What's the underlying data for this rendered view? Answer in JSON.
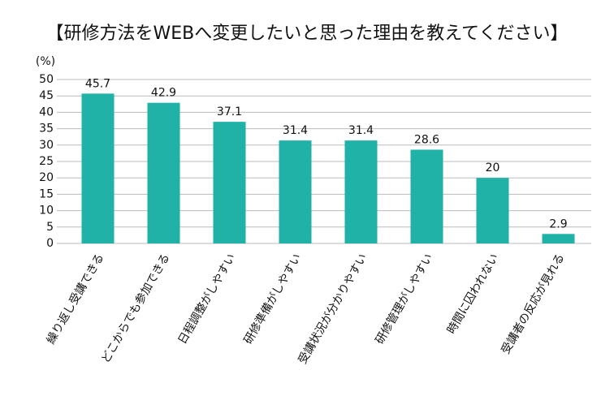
{
  "chart_data": {
    "type": "bar",
    "title": "【研修方法をWEBへ変更したいと思った理由を教えてください】",
    "y_label": "(%)",
    "categories": [
      "繰り返し受講できる",
      "どこからでも参加できる",
      "日程調整がしやすい",
      "研修準備がしやすい",
      "受講状況が分かりやすい",
      "研修管理がしやすい",
      "時間に囚われない",
      "受講者の反応が見れる"
    ],
    "values": [
      45.7,
      42.9,
      37.1,
      31.4,
      31.4,
      28.6,
      20,
      2.9
    ],
    "color": "#20b2a6",
    "ylim": [
      0,
      50
    ],
    "yticks": [
      0,
      5,
      10,
      15,
      20,
      25,
      30,
      35,
      40,
      45,
      50
    ],
    "grid": true
  }
}
